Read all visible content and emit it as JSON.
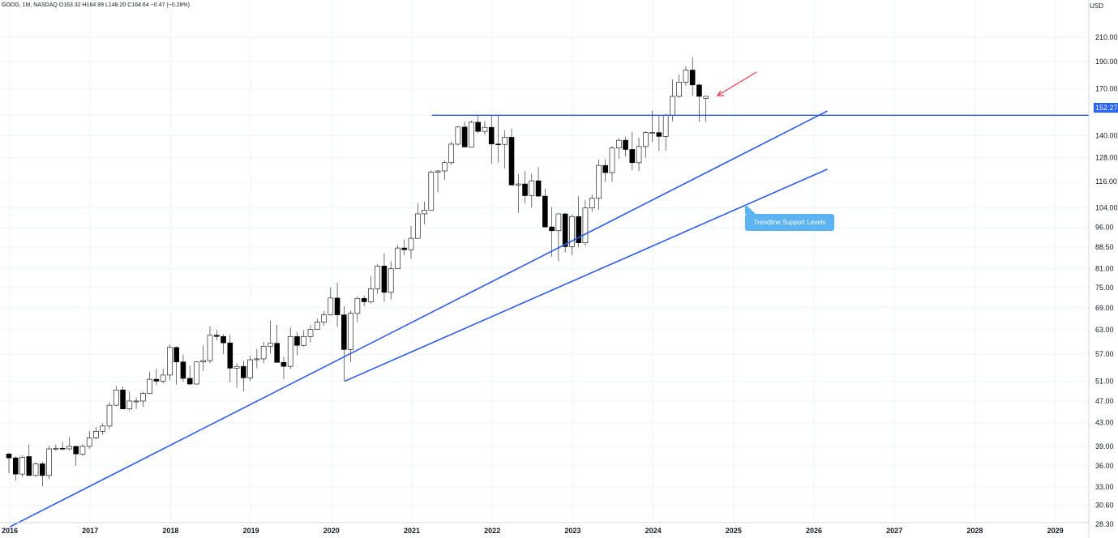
{
  "header": {
    "text": "GOOG, 1M, NASDAQ  O163.32  H164.99  L148.20  C164.64  −0.47 (−0.28%)"
  },
  "currency": "USD",
  "current_price_tag": "152.27",
  "annotation": "Trendline Support Levels",
  "colors": {
    "accent_blue": "#2962ff",
    "line_blue": "#2f5bea",
    "callout_blue": "#5bb3f2",
    "arrow_red": "#f23645",
    "candle_border": "#131722",
    "grid": "#f0f3fa"
  },
  "chart_data": {
    "type": "candlestick",
    "symbol": "GOOG",
    "interval": "1M",
    "exchange": "NASDAQ",
    "y_scale": "log",
    "y_ticks": [
      28.3,
      30.6,
      33.0,
      36.0,
      39.0,
      43.0,
      47.0,
      51.0,
      57.0,
      63.0,
      69.0,
      75.0,
      81.0,
      88.5,
      96.0,
      104.0,
      116.0,
      128.0,
      140.0,
      152.27,
      170.0,
      190.0,
      210.0
    ],
    "y_tick_labels": [
      "28.30",
      "30.60",
      "33.00",
      "36.00",
      "39.00",
      "43.00",
      "47.00",
      "51.00",
      "57.00",
      "63.00",
      "69.00",
      "75.00",
      "81.00",
      "88.50",
      "96.00",
      "104.00",
      "116.00",
      "128.00",
      "140.00",
      "",
      "170.00",
      "190.00",
      "210.00"
    ],
    "x_ticks": [
      "2016",
      "2017",
      "2018",
      "2019",
      "2020",
      "2021",
      "2022",
      "2023",
      "2024",
      "2025",
      "2026",
      "2027",
      "2028",
      "2029"
    ],
    "horizontal_level": 152.27,
    "trendlines": [
      {
        "from": [
          "2016-01",
          28.0
        ],
        "to": [
          "2026-03",
          155.0
        ]
      },
      {
        "from": [
          "2020-03",
          51.0
        ],
        "to": [
          "2026-03",
          122.0
        ]
      }
    ],
    "candles": [
      [
        "2016-01",
        37.8,
        38.0,
        34.9,
        37.2
      ],
      [
        "2016-02",
        37.2,
        37.4,
        33.9,
        34.8
      ],
      [
        "2016-03",
        34.8,
        37.6,
        34.4,
        37.3
      ],
      [
        "2016-04",
        37.4,
        39.3,
        34.7,
        34.6
      ],
      [
        "2016-05",
        34.6,
        36.5,
        34.4,
        36.3
      ],
      [
        "2016-06",
        36.3,
        36.6,
        33.1,
        34.6
      ],
      [
        "2016-07",
        34.6,
        39.1,
        34.1,
        38.6
      ],
      [
        "2016-08",
        38.6,
        39.3,
        38.3,
        38.7
      ],
      [
        "2016-09",
        38.7,
        39.7,
        38.4,
        38.6
      ],
      [
        "2016-10",
        38.6,
        40.5,
        38.4,
        39.0
      ],
      [
        "2016-11",
        39.0,
        39.1,
        36.0,
        37.8
      ],
      [
        "2016-12",
        37.8,
        39.4,
        37.5,
        39.0
      ],
      [
        "2017-01",
        39.0,
        41.6,
        38.6,
        40.4
      ],
      [
        "2017-02",
        40.4,
        42.3,
        40.2,
        41.5
      ],
      [
        "2017-03",
        41.5,
        42.9,
        40.9,
        42.4
      ],
      [
        "2017-04",
        42.4,
        46.8,
        41.8,
        46.2
      ],
      [
        "2017-05",
        46.2,
        50.0,
        46.0,
        49.2
      ],
      [
        "2017-06",
        49.2,
        49.9,
        45.8,
        45.5
      ],
      [
        "2017-07",
        45.5,
        48.9,
        45.1,
        47.0
      ],
      [
        "2017-08",
        47.0,
        47.7,
        45.5,
        47.0
      ],
      [
        "2017-09",
        47.0,
        48.8,
        45.9,
        48.5
      ],
      [
        "2017-10",
        48.5,
        53.0,
        48.4,
        51.4
      ],
      [
        "2017-11",
        51.4,
        53.7,
        50.2,
        51.0
      ],
      [
        "2017-12",
        51.0,
        53.7,
        50.5,
        52.3
      ],
      [
        "2018-01",
        52.3,
        59.3,
        51.2,
        58.6
      ],
      [
        "2018-02",
        58.6,
        58.8,
        50.3,
        55.2
      ],
      [
        "2018-03",
        55.2,
        56.9,
        50.9,
        51.6
      ],
      [
        "2018-04",
        51.6,
        54.4,
        50.2,
        50.4
      ],
      [
        "2018-05",
        50.4,
        55.3,
        50.3,
        55.2
      ],
      [
        "2018-06",
        55.2,
        59.1,
        53.2,
        55.5
      ],
      [
        "2018-07",
        55.5,
        63.9,
        54.9,
        61.6
      ],
      [
        "2018-08",
        61.6,
        63.0,
        60.3,
        61.3
      ],
      [
        "2018-09",
        61.3,
        61.9,
        57.0,
        59.7
      ],
      [
        "2018-10",
        59.7,
        61.6,
        50.8,
        53.8
      ],
      [
        "2018-11",
        53.8,
        54.9,
        49.6,
        54.2
      ],
      [
        "2018-12",
        54.2,
        55.5,
        48.9,
        51.7
      ],
      [
        "2019-01",
        51.7,
        56.6,
        51.1,
        55.7
      ],
      [
        "2019-02",
        55.7,
        58.2,
        53.8,
        55.9
      ],
      [
        "2019-03",
        55.9,
        60.0,
        54.9,
        58.9
      ],
      [
        "2019-04",
        58.9,
        65.4,
        57.1,
        59.6
      ],
      [
        "2019-05",
        59.6,
        64.3,
        55.9,
        55.1
      ],
      [
        "2019-06",
        55.1,
        56.4,
        51.4,
        54.2
      ],
      [
        "2019-07",
        54.2,
        63.7,
        53.6,
        61.3
      ],
      [
        "2019-08",
        61.3,
        62.4,
        56.7,
        59.1
      ],
      [
        "2019-09",
        59.1,
        62.9,
        58.8,
        61.3
      ],
      [
        "2019-10",
        61.3,
        64.2,
        59.8,
        63.1
      ],
      [
        "2019-11",
        63.1,
        66.0,
        63.0,
        65.0
      ],
      [
        "2019-12",
        65.0,
        68.0,
        64.0,
        67.0
      ],
      [
        "2020-01",
        67.0,
        75.0,
        66.8,
        71.8
      ],
      [
        "2020-02",
        71.8,
        76.5,
        63.8,
        67.0
      ],
      [
        "2020-03",
        67.0,
        69.4,
        51.0,
        58.1
      ],
      [
        "2020-04",
        58.1,
        68.2,
        55.2,
        67.4
      ],
      [
        "2020-05",
        67.4,
        72.3,
        64.9,
        71.7
      ],
      [
        "2020-06",
        71.7,
        72.5,
        69.4,
        70.7
      ],
      [
        "2020-07",
        70.7,
        78.5,
        70.2,
        74.6
      ],
      [
        "2020-08",
        74.6,
        82.6,
        73.1,
        81.9
      ],
      [
        "2020-09",
        81.9,
        86.4,
        70.7,
        73.5
      ],
      [
        "2020-10",
        73.5,
        83.6,
        71.4,
        81.0
      ],
      [
        "2020-11",
        81.0,
        89.4,
        81.0,
        88.2
      ],
      [
        "2020-12",
        88.2,
        91.4,
        85.6,
        87.6
      ],
      [
        "2021-01",
        87.6,
        96.6,
        84.3,
        91.8
      ],
      [
        "2021-02",
        91.8,
        106.1,
        91.6,
        101.5
      ],
      [
        "2021-03",
        101.5,
        106.7,
        97.3,
        103.1
      ],
      [
        "2021-04",
        103.1,
        121.4,
        103.1,
        120.5
      ],
      [
        "2021-05",
        120.5,
        121.6,
        110.9,
        121.1
      ],
      [
        "2021-06",
        121.1,
        126.4,
        116.8,
        125.3
      ],
      [
        "2021-07",
        125.3,
        136.7,
        124.2,
        135.2
      ],
      [
        "2021-08",
        135.2,
        145.6,
        134.5,
        145.1
      ],
      [
        "2021-09",
        145.1,
        148.2,
        133.3,
        133.7
      ],
      [
        "2021-10",
        133.7,
        149.0,
        133.5,
        148.0
      ],
      [
        "2021-11",
        148.0,
        152.1,
        141.4,
        142.5
      ],
      [
        "2021-12",
        142.5,
        148.6,
        140.5,
        144.9
      ],
      [
        "2022-01",
        144.9,
        152.0,
        124.6,
        135.3
      ],
      [
        "2022-02",
        135.3,
        152.3,
        125.3,
        135.1
      ],
      [
        "2022-03",
        135.1,
        143.1,
        122.4,
        139.1
      ],
      [
        "2022-04",
        139.1,
        144.2,
        114.3,
        114.3
      ],
      [
        "2022-05",
        114.3,
        119.6,
        101.9,
        114.8
      ],
      [
        "2022-06",
        114.8,
        121.0,
        106.0,
        109.4
      ],
      [
        "2022-07",
        109.4,
        119.7,
        104.2,
        116.3
      ],
      [
        "2022-08",
        116.3,
        123.0,
        108.8,
        109.2
      ],
      [
        "2022-09",
        109.2,
        112.6,
        95.9,
        96.2
      ],
      [
        "2022-10",
        96.2,
        104.4,
        85.1,
        94.7
      ],
      [
        "2022-11",
        94.7,
        101.5,
        83.5,
        101.5
      ],
      [
        "2022-12",
        101.5,
        101.9,
        86.6,
        88.7
      ],
      [
        "2023-01",
        88.7,
        101.3,
        85.6,
        100.4
      ],
      [
        "2023-02",
        100.4,
        109.1,
        88.6,
        90.1
      ],
      [
        "2023-03",
        90.1,
        107.4,
        89.0,
        104.0
      ],
      [
        "2023-04",
        104.0,
        110.0,
        102.4,
        108.2
      ],
      [
        "2023-05",
        108.2,
        127.0,
        103.1,
        123.9
      ],
      [
        "2023-06",
        123.9,
        127.1,
        115.8,
        120.3
      ],
      [
        "2023-07",
        120.3,
        134.1,
        115.8,
        133.1
      ],
      [
        "2023-08",
        133.1,
        138.5,
        127.2,
        137.4
      ],
      [
        "2023-09",
        137.4,
        139.2,
        128.5,
        132.3
      ],
      [
        "2023-10",
        132.3,
        142.3,
        121.5,
        125.3
      ],
      [
        "2023-11",
        125.3,
        138.8,
        121.0,
        133.9
      ],
      [
        "2023-12",
        133.9,
        142.7,
        127.9,
        141.8
      ],
      [
        "2024-01",
        141.8,
        155.2,
        136.5,
        141.8
      ],
      [
        "2024-02",
        141.8,
        152.2,
        131.6,
        139.6
      ],
      [
        "2024-03",
        139.6,
        153.2,
        131.6,
        152.3
      ],
      [
        "2024-04",
        152.3,
        176.4,
        148.6,
        164.6
      ],
      [
        "2024-05",
        164.6,
        180.1,
        163.7,
        174.5
      ],
      [
        "2024-06",
        174.5,
        186.3,
        172.0,
        183.4
      ],
      [
        "2024-07",
        183.4,
        193.3,
        164.8,
        172.5
      ],
      [
        "2024-08",
        172.5,
        173.6,
        148.2,
        164.6
      ],
      [
        "2024-09",
        163.3,
        165.0,
        148.2,
        164.6
      ]
    ]
  }
}
